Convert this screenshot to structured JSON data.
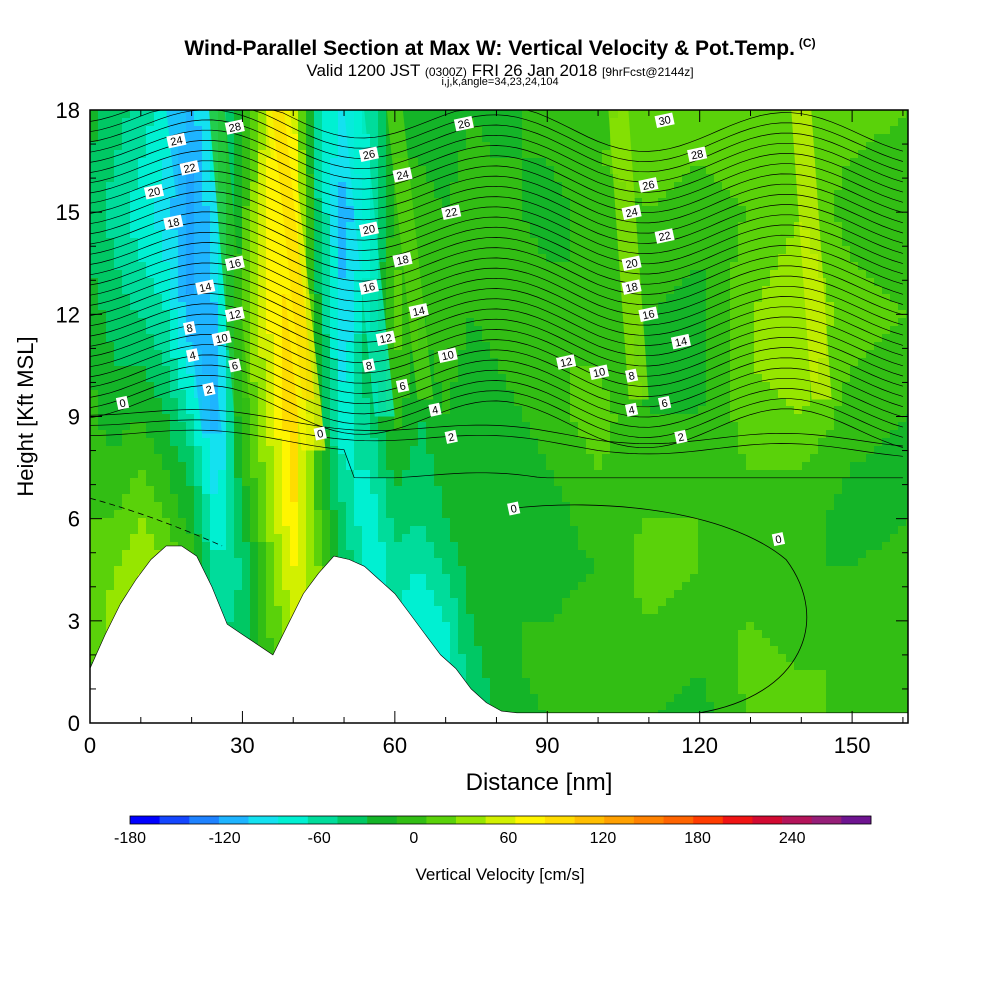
{
  "title": {
    "main": "Wind-Parallel Section at Max W: Vertical Velocity & Pot.Temp.",
    "copyright": "(C)",
    "valid_prefix": "Valid 1200 JST",
    "utc": "(0300Z)",
    "date": "FRI 26 Jan 2018",
    "forecast": "[9hrFcst@2144z]",
    "params": "i,j,k,angle=34,23,24,104"
  },
  "chart_data": {
    "type": "heatmap",
    "xlabel": "Distance [nm]",
    "ylabel": "Height [Kft MSL]",
    "xlim": [
      0,
      161
    ],
    "ylim": [
      0,
      18
    ],
    "xticks": [
      0,
      30,
      60,
      90,
      120,
      150
    ],
    "yticks": [
      0,
      3,
      6,
      9,
      12,
      15,
      18
    ],
    "colorbar": {
      "label": "Vertical Velocity [cm/s]",
      "min": -180,
      "max": 270,
      "step": 20,
      "tick_values": [
        -180,
        -120,
        -60,
        0,
        60,
        120,
        180,
        240
      ],
      "tick_labels": [
        "-180",
        "-120",
        "-60",
        "0",
        "60",
        "120",
        "180",
        "240"
      ],
      "colors": [
        "#0000ff",
        "#1446ff",
        "#1e82ff",
        "#1eb4ff",
        "#14e1f0",
        "#00f0d2",
        "#00dc9b",
        "#00c864",
        "#14b428",
        "#32be14",
        "#5ad20a",
        "#96e600",
        "#d2f000",
        "#fff500",
        "#ffdc00",
        "#ffbe00",
        "#ffa000",
        "#ff8200",
        "#ff6400",
        "#ff3c00",
        "#f01414",
        "#d20a32",
        "#b4145a",
        "#961e78",
        "#6e1490"
      ]
    },
    "terrain_kft": [
      [
        0,
        1.6
      ],
      [
        3,
        2.6
      ],
      [
        6,
        3.5
      ],
      [
        9,
        4.2
      ],
      [
        12,
        4.8
      ],
      [
        15,
        5.2
      ],
      [
        18,
        5.2
      ],
      [
        21,
        4.9
      ],
      [
        24,
        4.0
      ],
      [
        27,
        2.9
      ],
      [
        30,
        2.6
      ],
      [
        33,
        2.3
      ],
      [
        36,
        2.0
      ],
      [
        39,
        2.9
      ],
      [
        42,
        3.8
      ],
      [
        45,
        4.4
      ],
      [
        48,
        4.9
      ],
      [
        51,
        4.8
      ],
      [
        54,
        4.6
      ],
      [
        57,
        4.2
      ],
      [
        60,
        3.8
      ],
      [
        63,
        3.2
      ],
      [
        66,
        2.6
      ],
      [
        69,
        2.0
      ],
      [
        72,
        1.6
      ],
      [
        75,
        1.0
      ],
      [
        78,
        0.6
      ],
      [
        81,
        0.35
      ],
      [
        84,
        0.3
      ],
      [
        161,
        0.3
      ]
    ],
    "vertical_velocity_columns": [
      {
        "x": 0,
        "values": [
          10,
          15,
          20,
          30,
          20,
          10,
          5,
          0,
          -10,
          -20,
          -30,
          -20,
          -10
        ]
      },
      {
        "x": 5,
        "values": [
          30,
          40,
          50,
          40,
          20,
          5,
          -10,
          -20,
          -30,
          -40,
          -50,
          -40,
          -30
        ]
      },
      {
        "x": 10,
        "values": [
          50,
          60,
          70,
          60,
          40,
          20,
          0,
          -20,
          -40,
          -60,
          -70,
          -60,
          -50
        ]
      },
      {
        "x": 15,
        "values": [
          60,
          70,
          60,
          40,
          20,
          0,
          -20,
          -40,
          -60,
          -80,
          -90,
          -80,
          -70
        ]
      },
      {
        "x": 20,
        "values": [
          40,
          50,
          40,
          20,
          -10,
          -30,
          -60,
          -90,
          -120,
          -130,
          -130,
          -120,
          -110
        ]
      },
      {
        "x": 25,
        "values": [
          -30,
          -40,
          -50,
          -60,
          -80,
          -100,
          -110,
          -110,
          -100,
          -90,
          -80,
          -70,
          -60
        ]
      },
      {
        "x": 30,
        "values": [
          -10,
          -20,
          -30,
          -40,
          -20,
          0,
          10,
          20,
          30,
          20,
          10,
          0,
          -10
        ]
      },
      {
        "x": 35,
        "values": [
          0,
          10,
          20,
          30,
          40,
          50,
          60,
          70,
          80,
          90,
          90,
          80,
          70
        ]
      },
      {
        "x": 40,
        "values": [
          20,
          40,
          60,
          80,
          100,
          110,
          120,
          120,
          110,
          100,
          100,
          90,
          80
        ]
      },
      {
        "x": 45,
        "values": [
          60,
          80,
          60,
          40,
          20,
          10,
          0,
          -10,
          -20,
          -30,
          -40,
          -50,
          -50
        ]
      },
      {
        "x": 50,
        "values": [
          20,
          10,
          0,
          -20,
          -40,
          -60,
          -80,
          -90,
          -100,
          -110,
          -110,
          -100,
          -90
        ]
      },
      {
        "x": 55,
        "values": [
          -20,
          -40,
          -60,
          -80,
          -80,
          -60,
          -40,
          -20,
          -40,
          -60,
          -70,
          -60,
          -50
        ]
      },
      {
        "x": 60,
        "values": [
          -40,
          -50,
          -60,
          -50,
          -30,
          -10,
          10,
          20,
          30,
          20,
          10,
          0,
          -10
        ]
      },
      {
        "x": 65,
        "values": [
          -60,
          -70,
          -80,
          -60,
          -40,
          -30,
          -20,
          -10,
          0,
          10,
          10,
          0,
          -10
        ]
      },
      {
        "x": 70,
        "values": [
          -60,
          -70,
          -60,
          -40,
          -20,
          -10,
          0,
          10,
          20,
          10,
          0,
          -10,
          -20
        ]
      },
      {
        "x": 75,
        "values": [
          -40,
          -30,
          -20,
          -10,
          0,
          -10,
          -20,
          -10,
          0,
          10,
          20,
          10,
          0
        ]
      },
      {
        "x": 80,
        "values": [
          -20,
          -10,
          0,
          -10,
          -20,
          -20,
          -10,
          0,
          10,
          20,
          10,
          0,
          -10
        ]
      },
      {
        "x": 90,
        "values": [
          0,
          10,
          0,
          -10,
          -10,
          0,
          10,
          20,
          10,
          0,
          -10,
          0,
          10
        ]
      },
      {
        "x": 100,
        "values": [
          10,
          20,
          10,
          0,
          10,
          20,
          30,
          20,
          10,
          0,
          10,
          20,
          10
        ]
      },
      {
        "x": 110,
        "values": [
          0,
          10,
          20,
          30,
          20,
          10,
          0,
          -10,
          0,
          10,
          20,
          30,
          40
        ]
      },
      {
        "x": 120,
        "values": [
          -10,
          0,
          10,
          20,
          20,
          10,
          0,
          -10,
          -10,
          0,
          10,
          20,
          30
        ]
      },
      {
        "x": 130,
        "values": [
          20,
          30,
          20,
          10,
          10,
          20,
          30,
          40,
          40,
          30,
          20,
          30,
          40
        ]
      },
      {
        "x": 140,
        "values": [
          30,
          20,
          10,
          0,
          10,
          20,
          40,
          50,
          60,
          50,
          40,
          30,
          40
        ]
      },
      {
        "x": 150,
        "values": [
          10,
          20,
          10,
          0,
          -10,
          0,
          10,
          20,
          30,
          20,
          10,
          20,
          30
        ]
      },
      {
        "x": 161,
        "values": [
          0,
          10,
          20,
          10,
          0,
          -10,
          0,
          10,
          20,
          10,
          0,
          10,
          20
        ]
      }
    ],
    "column_levels_kft": [
      0,
      1.5,
      3,
      4.5,
      6,
      7.5,
      9,
      10.5,
      12,
      13.5,
      15,
      16.5,
      18
    ],
    "theta_contour_labels": [
      {
        "value": "0",
        "x": 6.4,
        "y": 9.4
      },
      {
        "value": "0",
        "x": 45.3,
        "y": 8.5
      },
      {
        "value": "0",
        "x": 83.4,
        "y": 6.3
      },
      {
        "value": "0",
        "x": 135.5,
        "y": 5.4
      },
      {
        "value": "2",
        "x": 23.4,
        "y": 9.8
      },
      {
        "value": "2",
        "x": 71.1,
        "y": 8.4
      },
      {
        "value": "2",
        "x": 116.3,
        "y": 8.4
      },
      {
        "value": "4",
        "x": 20.2,
        "y": 10.8
      },
      {
        "value": "4",
        "x": 67.9,
        "y": 9.2
      },
      {
        "value": "4",
        "x": 106.6,
        "y": 9.2
      },
      {
        "value": "6",
        "x": 28.5,
        "y": 10.5
      },
      {
        "value": "6",
        "x": 61.5,
        "y": 9.9
      },
      {
        "value": "6",
        "x": 113.1,
        "y": 9.4
      },
      {
        "value": "8",
        "x": 19.6,
        "y": 11.6
      },
      {
        "value": "8",
        "x": 54.9,
        "y": 10.5
      },
      {
        "value": "8",
        "x": 106.6,
        "y": 10.2
      },
      {
        "value": "10",
        "x": 25.9,
        "y": 11.3
      },
      {
        "value": "10",
        "x": 70.4,
        "y": 10.8
      },
      {
        "value": "10",
        "x": 100.2,
        "y": 10.3
      },
      {
        "value": "12",
        "x": 28.5,
        "y": 12.0
      },
      {
        "value": "12",
        "x": 58.2,
        "y": 11.3
      },
      {
        "value": "12",
        "x": 93.7,
        "y": 10.6
      },
      {
        "value": "14",
        "x": 22.7,
        "y": 12.8
      },
      {
        "value": "14",
        "x": 64.7,
        "y": 12.1
      },
      {
        "value": "14",
        "x": 116.3,
        "y": 11.2
      },
      {
        "value": "16",
        "x": 28.5,
        "y": 13.5
      },
      {
        "value": "16",
        "x": 54.9,
        "y": 12.8
      },
      {
        "value": "16",
        "x": 109.9,
        "y": 12.0
      },
      {
        "value": "18",
        "x": 16.4,
        "y": 14.7
      },
      {
        "value": "18",
        "x": 61.5,
        "y": 13.6
      },
      {
        "value": "18",
        "x": 106.6,
        "y": 12.8
      },
      {
        "value": "20",
        "x": 12.6,
        "y": 15.6
      },
      {
        "value": "20",
        "x": 54.9,
        "y": 14.5
      },
      {
        "value": "20",
        "x": 106.6,
        "y": 13.5
      },
      {
        "value": "22",
        "x": 19.6,
        "y": 16.3
      },
      {
        "value": "22",
        "x": 71.1,
        "y": 15.0
      },
      {
        "value": "22",
        "x": 113.1,
        "y": 14.3
      },
      {
        "value": "24",
        "x": 17.0,
        "y": 17.1
      },
      {
        "value": "24",
        "x": 61.5,
        "y": 16.1
      },
      {
        "value": "24",
        "x": 106.6,
        "y": 15.0
      },
      {
        "value": "26",
        "x": 54.9,
        "y": 16.7
      },
      {
        "value": "26",
        "x": 73.6,
        "y": 17.6
      },
      {
        "value": "26",
        "x": 109.9,
        "y": 15.8
      },
      {
        "value": "28",
        "x": 28.5,
        "y": 17.5
      },
      {
        "value": "28",
        "x": 119.5,
        "y": 16.7
      },
      {
        "value": "30",
        "x": 113.1,
        "y": 17.7
      }
    ]
  }
}
